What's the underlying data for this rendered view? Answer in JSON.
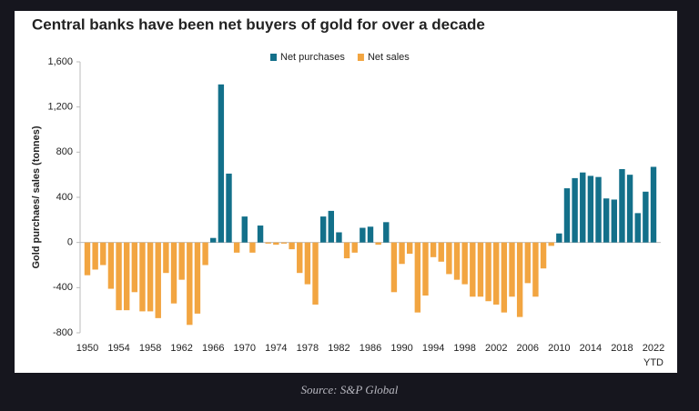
{
  "chart_data": {
    "type": "bar",
    "title": "Central banks have been net buyers of gold for over a decade",
    "y_label": "Gold purchaes/ sales (tonnes)",
    "source": "Source: S&P Global",
    "categories": [
      "1950",
      null,
      null,
      null,
      "1954",
      null,
      null,
      null,
      "1958",
      null,
      null,
      null,
      "1962",
      null,
      null,
      null,
      "1966",
      null,
      null,
      null,
      "1970",
      null,
      null,
      null,
      "1974",
      null,
      null,
      null,
      "1978",
      null,
      null,
      null,
      "1982",
      null,
      null,
      null,
      "1986",
      null,
      null,
      null,
      "1990",
      null,
      null,
      null,
      "1994",
      null,
      null,
      null,
      "1998",
      null,
      null,
      null,
      "2002",
      null,
      null,
      null,
      "2006",
      null,
      null,
      null,
      "2010",
      null,
      null,
      null,
      "2014",
      null,
      null,
      null,
      "2018",
      null,
      null,
      null,
      "2022"
    ],
    "last_category_note": "YTD",
    "series": [
      {
        "name": "Net purchases",
        "color": "#13708a",
        "values": [
          null,
          null,
          null,
          null,
          null,
          null,
          null,
          null,
          null,
          null,
          null,
          null,
          null,
          null,
          null,
          null,
          40,
          1400,
          610,
          null,
          230,
          null,
          150,
          null,
          null,
          null,
          null,
          null,
          null,
          null,
          230,
          280,
          90,
          null,
          null,
          130,
          140,
          null,
          180,
          null,
          null,
          null,
          null,
          null,
          null,
          null,
          null,
          null,
          null,
          null,
          null,
          null,
          null,
          null,
          null,
          null,
          null,
          null,
          null,
          null,
          80,
          480,
          570,
          620,
          590,
          580,
          390,
          380,
          650,
          600,
          260,
          450,
          670
        ]
      },
      {
        "name": "Net sales",
        "color": "#f2a541",
        "values": [
          -290,
          -240,
          -200,
          -410,
          -600,
          -600,
          -440,
          -610,
          -610,
          -670,
          -270,
          -540,
          -330,
          -730,
          -630,
          -200,
          null,
          null,
          null,
          -90,
          null,
          -90,
          null,
          -10,
          -20,
          -10,
          -60,
          -270,
          -370,
          -550,
          null,
          null,
          null,
          -140,
          -90,
          null,
          null,
          -20,
          null,
          -440,
          -190,
          -100,
          -620,
          -470,
          -130,
          -170,
          -280,
          -330,
          -370,
          -480,
          -480,
          -520,
          -550,
          -620,
          -480,
          -660,
          -360,
          -480,
          -230,
          -30,
          null,
          null,
          null,
          null,
          null,
          null,
          null,
          null,
          null,
          null,
          null,
          null,
          null
        ]
      }
    ],
    "ylim": [
      -800,
      1600
    ],
    "yticks": [
      {
        "value": 1600,
        "label": "1,600"
      },
      {
        "value": 1200,
        "label": "1,200"
      },
      800,
      400,
      0,
      -400,
      -800
    ],
    "legend": "top"
  }
}
